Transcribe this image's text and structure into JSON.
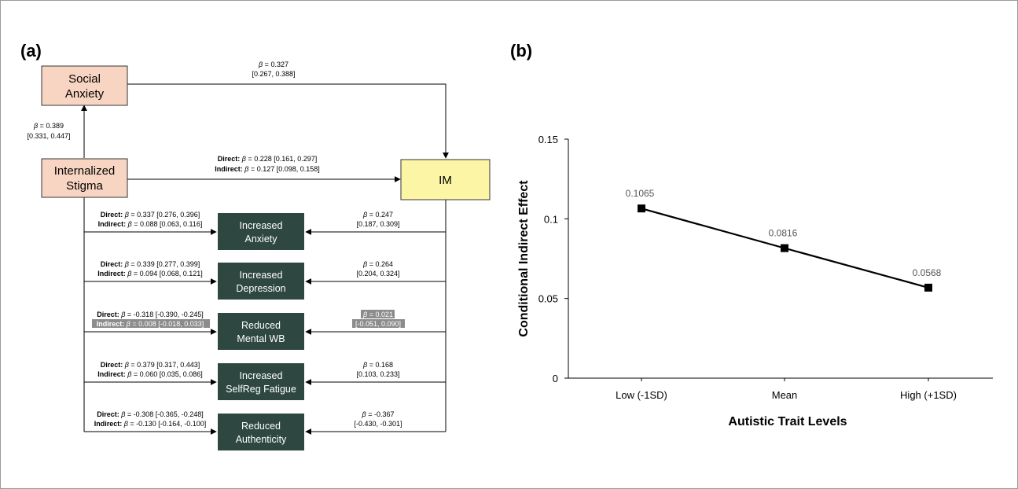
{
  "panel_a": {
    "label": "(a)",
    "nodes": {
      "social_anxiety": [
        "Social",
        "Anxiety"
      ],
      "internalized_stigma": [
        "Internalized",
        "Stigma"
      ],
      "im": "IM",
      "increased_anxiety": [
        "Increased",
        "Anxiety"
      ],
      "increased_depression": [
        "Increased",
        "Depression"
      ],
      "reduced_mental_wb": [
        "Reduced",
        "Mental WB"
      ],
      "increased_selfreg_fatigue": [
        "Increased",
        "SelfReg Fatigue"
      ],
      "reduced_authenticity": [
        "Reduced",
        "Authenticity"
      ]
    },
    "paths": {
      "sa_to_im": {
        "beta": "0.327",
        "ci": "[0.267, 0.388]"
      },
      "stigma_to_sa": {
        "beta": "0.389",
        "ci": "[0.331, 0.447]"
      },
      "stigma_to_im": {
        "direct": "0.228 [0.161, 0.297]",
        "indirect": "0.127 [0.098, 0.158]"
      }
    },
    "outcomes": [
      {
        "direct": "0.337 [0.276, 0.396]",
        "indirect": "0.088 [0.063, 0.116]",
        "im_beta": "0.247",
        "im_ci": "[0.187, 0.309]",
        "highlight": false
      },
      {
        "direct": "0.339 [0.277, 0.399]",
        "indirect": "0.094 [0.068, 0.121]",
        "im_beta": "0.264",
        "im_ci": "[0.204, 0.324]",
        "highlight": false
      },
      {
        "direct": "-0.318 [-0.390, -0.245]",
        "indirect": "0.008 [-0.018, 0.033]",
        "im_beta": "0.021",
        "im_ci": "[-0.051, 0.090]",
        "highlight": true
      },
      {
        "direct": "0.379 [0.317, 0.443]",
        "indirect": "0.060 [0.035, 0.086]",
        "im_beta": "0.168",
        "im_ci": "[0.103, 0.233]",
        "highlight": false
      },
      {
        "direct": "-0.308 [-0.365, -0.248]",
        "indirect": "-0.130 [-0.164, -0.100]",
        "im_beta": "-0.367",
        "im_ci": "[-0.430, -0.301]",
        "highlight": false
      }
    ],
    "text": {
      "direct": "Direct:",
      "indirect": "Indirect:",
      "beta_symbol": "β",
      "equals": " = "
    },
    "colors": {
      "peach": "#f8d5c2",
      "yellow": "#fdf5a6",
      "dark": "#2e4741",
      "highlight": "#8c8c8c"
    }
  },
  "panel_b": {
    "label": "(b)"
  },
  "chart_data": {
    "type": "line",
    "title": "",
    "xlabel": "Autistic Trait Levels",
    "ylabel": "Conditional Indirect Effect",
    "categories": [
      "Low (-1SD)",
      "Mean",
      "High (+1SD)"
    ],
    "values": [
      0.1065,
      0.0816,
      0.0568
    ],
    "data_labels": [
      "0.1065",
      "0.0816",
      "0.0568"
    ],
    "ylim": [
      0,
      0.15
    ],
    "yticks": [
      0,
      0.05,
      0.1,
      0.15
    ],
    "ytick_labels": [
      "0",
      "0.05",
      "0.1",
      "0.15"
    ],
    "grid": false,
    "marker": "square"
  }
}
